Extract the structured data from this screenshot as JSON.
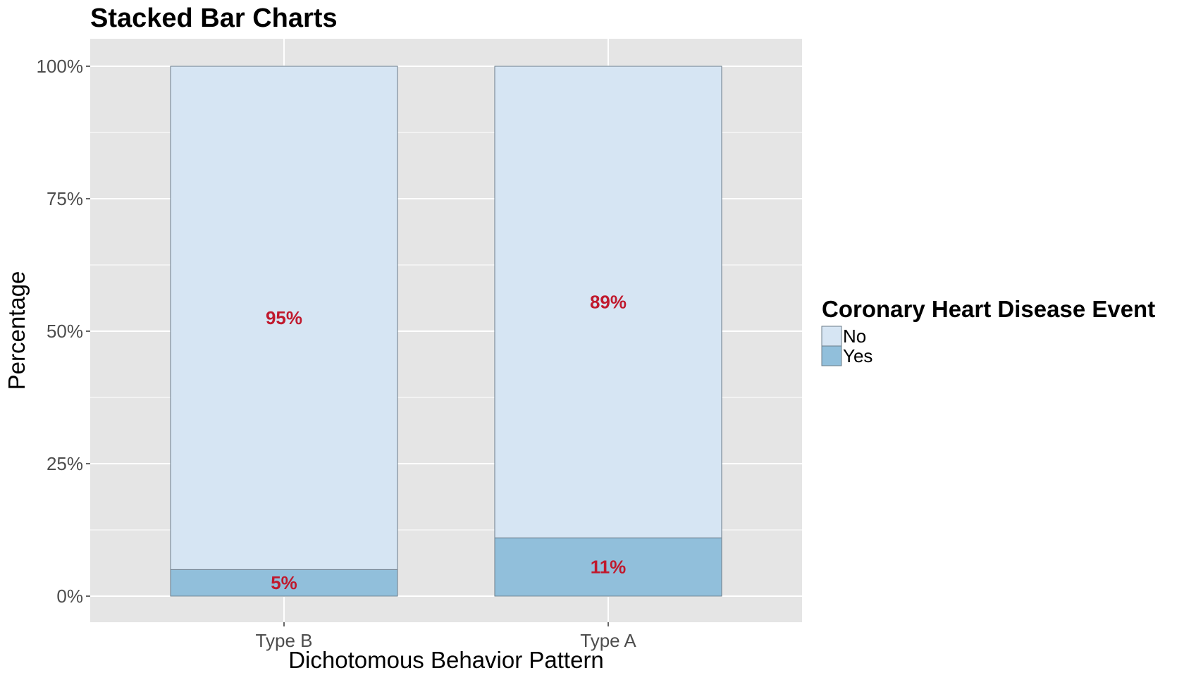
{
  "chart_data": {
    "type": "bar",
    "stacked": true,
    "title": "Stacked Bar Charts",
    "xlabel": "Dichotomous Behavior Pattern",
    "ylabel": "Percentage",
    "categories": [
      "Type B",
      "Type A"
    ],
    "series": [
      {
        "name": "Yes",
        "values": [
          5,
          11
        ],
        "labels": [
          "5%",
          "11%"
        ],
        "color": "#91bfdb"
      },
      {
        "name": "No",
        "values": [
          95,
          89
        ],
        "labels": [
          "95%",
          "89%"
        ],
        "color": "#d6e5f3"
      }
    ],
    "ylim": [
      0,
      100
    ],
    "yticks": [
      0,
      25,
      50,
      75,
      100
    ],
    "ytick_labels": [
      "0%",
      "25%",
      "50%",
      "75%",
      "100%"
    ],
    "legend": {
      "title": "Coronary Heart Disease Event",
      "entries": [
        "No",
        "Yes"
      ],
      "placement": "right"
    },
    "grid": true,
    "colors": {
      "panel_background": "#e5e5e5",
      "grid_line": "#ffffff",
      "bar_outline": "#6b7c8a",
      "data_label": "#c0192d"
    }
  }
}
